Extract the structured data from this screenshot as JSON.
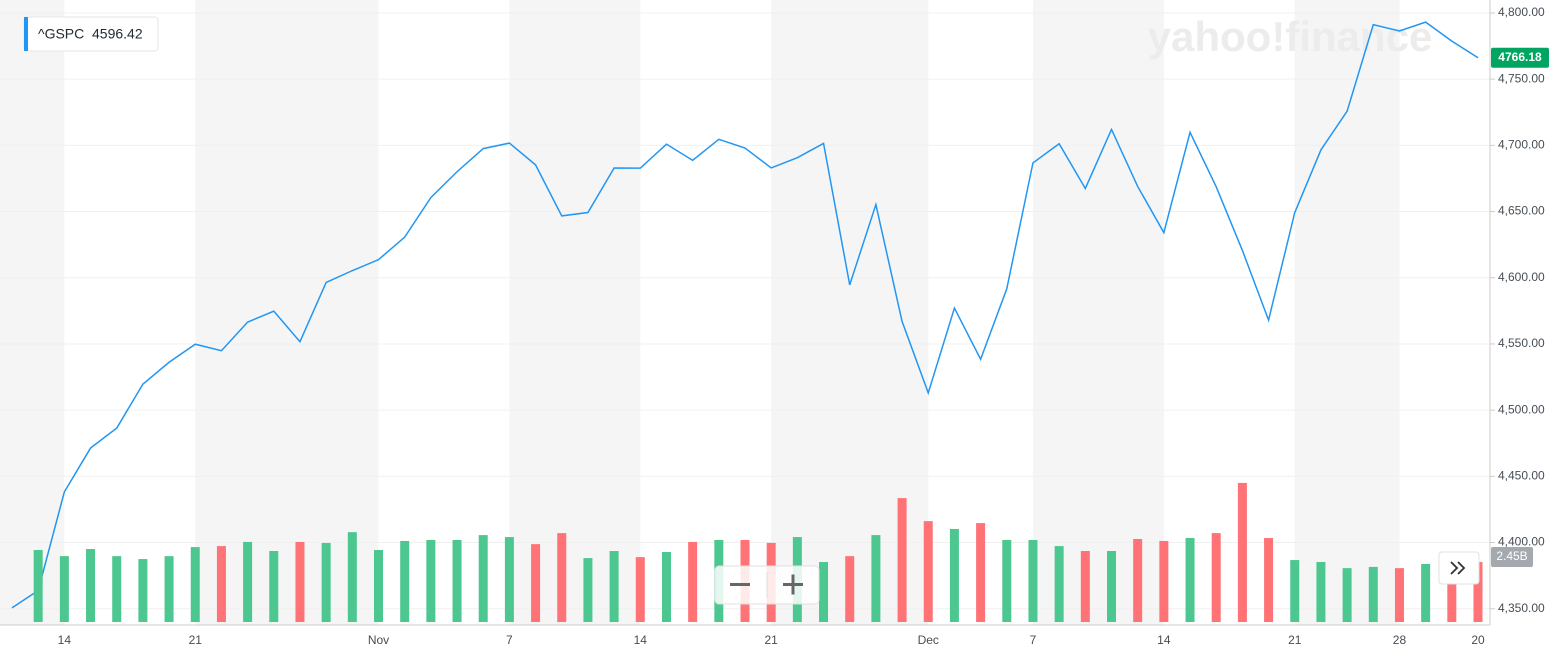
{
  "chart_data": {
    "type": "line",
    "watermark": "yahoo!finance",
    "categories": [
      null,
      null,
      "14",
      null,
      null,
      null,
      null,
      "21",
      null,
      null,
      null,
      null,
      null,
      null,
      "Nov",
      null,
      null,
      null,
      null,
      "7",
      null,
      null,
      null,
      null,
      "14",
      null,
      null,
      null,
      null,
      "21",
      null,
      null,
      null,
      null,
      null,
      "Dec",
      null,
      null,
      null,
      "7",
      null,
      null,
      null,
      null,
      "14",
      null,
      null,
      null,
      null,
      "21",
      null,
      null,
      null,
      "28",
      null,
      null,
      "20"
    ],
    "series": [
      {
        "name": "^GSPC",
        "color": "#2196f3",
        "values": [
          4350.65,
          4363.8,
          4438.26,
          4471.37,
          4486.46,
          4519.63,
          4536.19,
          4549.78,
          4544.9,
          4566.48,
          4574.79,
          4551.68,
          4596.42,
          4605.38,
          4613.67,
          4630.65,
          4660.57,
          4680.06,
          4697.53,
          4701.7,
          4685.25,
          4646.71,
          4649.27,
          4682.85,
          4682.8,
          4700.9,
          4688.67,
          4704.54,
          4697.96,
          4682.94,
          4690.7,
          4701.46,
          4594.62,
          4655.27,
          4567.0,
          4513.04,
          4577.1,
          4538.43,
          4591.67,
          4686.75,
          4701.21,
          4667.45,
          4712.02,
          4668.97,
          4634.09,
          4709.85,
          4668.67,
          4620.64,
          4568.02,
          4649.23,
          4696.56,
          4725.79,
          4791.19,
          4786.35,
          4793.06,
          4778.73,
          4766.18
        ]
      },
      {
        "name": "Volume",
        "type": "bar",
        "axis": "y2",
        "up_color": "#4cc790",
        "down_color": "#ff7276",
        "values": [
          null,
          2.94,
          2.69,
          2.98,
          2.69,
          2.57,
          2.69,
          3.06,
          3.1,
          3.27,
          2.9,
          3.27,
          3.23,
          3.67,
          2.94,
          3.31,
          3.35,
          3.35,
          3.55,
          3.47,
          3.18,
          3.63,
          2.61,
          2.9,
          2.65,
          2.86,
          3.27,
          3.35,
          3.35,
          3.23,
          3.47,
          2.45,
          2.69,
          3.55,
          5.06,
          4.12,
          3.8,
          4.04,
          3.35,
          3.35,
          3.1,
          2.9,
          2.9,
          3.39,
          3.31,
          3.43,
          3.63,
          5.68,
          3.43,
          2.53,
          2.45,
          2.2,
          2.25,
          2.2,
          2.37,
          2.2,
          2.45
        ],
        "value_labels": [
          null,
          null,
          null,
          null,
          null,
          null,
          null,
          null,
          null,
          null,
          null,
          null,
          null,
          null,
          null,
          null,
          null,
          null,
          null,
          null,
          null,
          null,
          null,
          null,
          null,
          null,
          null,
          null,
          null,
          null,
          null,
          null,
          null,
          null,
          null,
          null,
          null,
          null,
          null,
          null,
          null,
          null,
          null,
          null,
          null,
          null,
          null,
          null,
          null,
          null,
          null,
          null,
          null,
          null,
          null,
          null,
          "2.45B"
        ]
      }
    ],
    "ylim": [
      4340,
      4806
    ],
    "yticks": [
      {
        "value": 4350,
        "label": "4,350.00"
      },
      {
        "value": 4400,
        "label": "4,400.00"
      },
      {
        "value": 4450,
        "label": "4,450.00"
      },
      {
        "value": 4500,
        "label": "4,500.00"
      },
      {
        "value": 4550,
        "label": "4,550.00"
      },
      {
        "value": 4600,
        "label": "4,600.00"
      },
      {
        "value": 4650,
        "label": "4,650.00"
      },
      {
        "value": 4700,
        "label": "4,700.00"
      },
      {
        "value": 4750,
        "label": "4,750.00"
      },
      {
        "value": 4800,
        "label": "4,800.00"
      }
    ],
    "y2lim": [
      0,
      25.2
    ],
    "grid": true
  }
}
